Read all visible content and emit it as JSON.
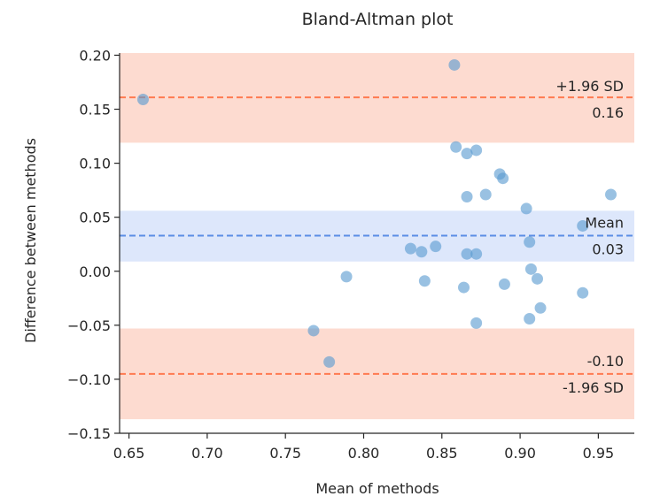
{
  "chart_data": {
    "type": "scatter",
    "title": "Bland-Altman plot",
    "xlabel": "Mean of methods",
    "ylabel": "Difference between methods",
    "xlim": [
      0.644,
      0.973
    ],
    "ylim": [
      -0.15,
      0.202
    ],
    "xticks": [
      0.65,
      0.7,
      0.75,
      0.8,
      0.85,
      0.9,
      0.95
    ],
    "xtick_labels": [
      "0.65",
      "0.70",
      "0.75",
      "0.80",
      "0.85",
      "0.90",
      "0.95"
    ],
    "yticks": [
      -0.15,
      -0.1,
      -0.05,
      0.0,
      0.05,
      0.1,
      0.15,
      0.2
    ],
    "ytick_labels": [
      "−0.15",
      "−0.10",
      "−0.05",
      "0.00",
      "0.05",
      "0.10",
      "0.15",
      "0.20"
    ],
    "mean_line": {
      "value": 0.033,
      "label": "Mean",
      "value_label": "0.03",
      "ci": [
        0.009,
        0.056
      ]
    },
    "upper_loa": {
      "value": 0.161,
      "label": "+1.96 SD",
      "value_label": "0.16",
      "ci": [
        0.119,
        0.203
      ]
    },
    "lower_loa": {
      "value": -0.095,
      "label": "-1.96 SD",
      "value_label": "-0.10",
      "ci": [
        -0.137,
        -0.053
      ]
    },
    "points": [
      {
        "x": 0.659,
        "y": 0.159
      },
      {
        "x": 0.858,
        "y": 0.191
      },
      {
        "x": 0.859,
        "y": 0.115
      },
      {
        "x": 0.866,
        "y": 0.109
      },
      {
        "x": 0.872,
        "y": 0.112
      },
      {
        "x": 0.887,
        "y": 0.09
      },
      {
        "x": 0.889,
        "y": 0.086
      },
      {
        "x": 0.866,
        "y": 0.069
      },
      {
        "x": 0.878,
        "y": 0.071
      },
      {
        "x": 0.904,
        "y": 0.058
      },
      {
        "x": 0.958,
        "y": 0.071
      },
      {
        "x": 0.94,
        "y": 0.042
      },
      {
        "x": 0.906,
        "y": 0.027
      },
      {
        "x": 0.83,
        "y": 0.021
      },
      {
        "x": 0.837,
        "y": 0.018
      },
      {
        "x": 0.846,
        "y": 0.023
      },
      {
        "x": 0.866,
        "y": 0.016
      },
      {
        "x": 0.872,
        "y": 0.016
      },
      {
        "x": 0.907,
        "y": 0.002
      },
      {
        "x": 0.911,
        "y": -0.007
      },
      {
        "x": 0.789,
        "y": -0.005
      },
      {
        "x": 0.839,
        "y": -0.009
      },
      {
        "x": 0.864,
        "y": -0.015
      },
      {
        "x": 0.89,
        "y": -0.012
      },
      {
        "x": 0.94,
        "y": -0.02
      },
      {
        "x": 0.913,
        "y": -0.034
      },
      {
        "x": 0.906,
        "y": -0.044
      },
      {
        "x": 0.872,
        "y": -0.048
      },
      {
        "x": 0.768,
        "y": -0.055
      },
      {
        "x": 0.778,
        "y": -0.084
      }
    ],
    "colors": {
      "points": "#5b9bd0",
      "mean_line": "#5b8ee6",
      "mean_band": "#dde7fb",
      "loa_line": "#ff7a50",
      "loa_band": "#fddbd0",
      "axis": "#262626"
    }
  }
}
